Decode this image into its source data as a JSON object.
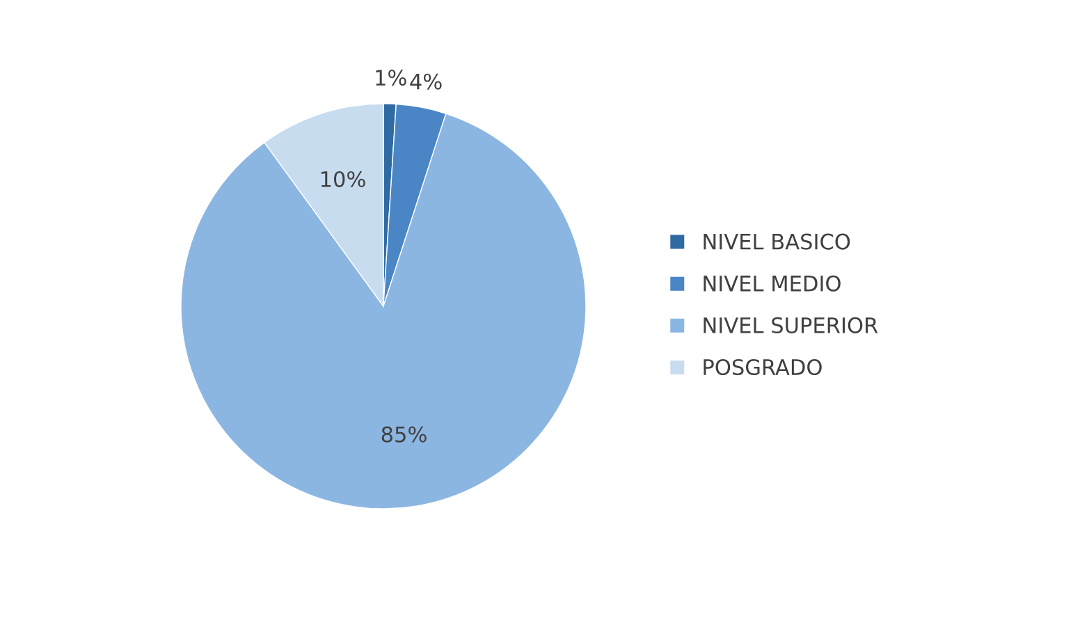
{
  "chart_data": {
    "type": "pie",
    "categories": [
      "NIVEL BASICO",
      "NIVEL MEDIO",
      "NIVEL SUPERIOR",
      "POSGRADO"
    ],
    "values": [
      1,
      4,
      85,
      10
    ],
    "colors": [
      "#2f6aa3",
      "#4a86c5",
      "#8cb6e2",
      "#c8dcf0"
    ],
    "value_labels": [
      "1%",
      "4%",
      "85%",
      "10%"
    ],
    "legend": "right"
  }
}
